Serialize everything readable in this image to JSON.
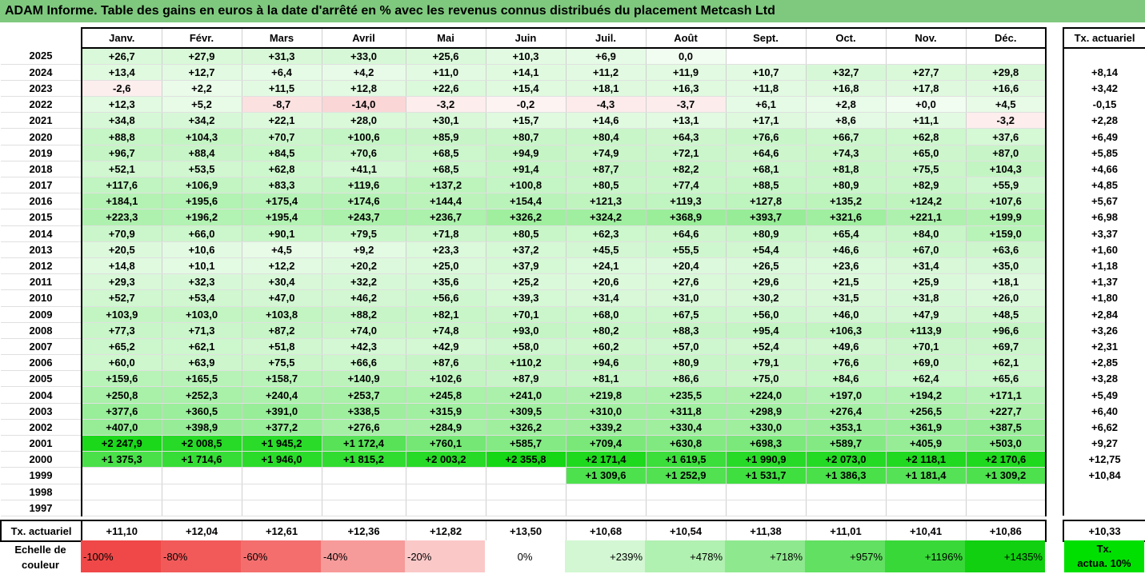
{
  "title": "ADAM Informe. Table des gains en euros à la date d'arrêté en % avec les revenus connus distribués du placement Metcash Ltd",
  "months": [
    "Janv.",
    "Févr.",
    "Mars",
    "Avril",
    "Mai",
    "Juin",
    "Juil.",
    "Août",
    "Sept.",
    "Oct.",
    "Nov.",
    "Déc."
  ],
  "tx_header": "Tx. actuariel",
  "rows": [
    {
      "year": "2025",
      "values": [
        "+26,7",
        "+27,9",
        "+31,3",
        "+33,0",
        "+25,6",
        "+10,3",
        "+6,9",
        "0,0",
        "",
        "",
        "",
        ""
      ],
      "tx": ""
    },
    {
      "year": "2024",
      "values": [
        "+13,4",
        "+12,7",
        "+6,4",
        "+4,2",
        "+11,0",
        "+14,1",
        "+11,2",
        "+11,9",
        "+10,7",
        "+32,7",
        "+27,7",
        "+29,8"
      ],
      "tx": "+8,14"
    },
    {
      "year": "2023",
      "values": [
        "-2,6",
        "+2,2",
        "+11,5",
        "+12,8",
        "+22,6",
        "+15,4",
        "+18,1",
        "+16,3",
        "+11,8",
        "+16,8",
        "+17,8",
        "+16,6"
      ],
      "tx": "+3,42"
    },
    {
      "year": "2022",
      "values": [
        "+12,3",
        "+5,2",
        "-8,7",
        "-14,0",
        "-3,2",
        "-0,2",
        "-4,3",
        "-3,7",
        "+6,1",
        "+2,8",
        "+0,0",
        "+4,5"
      ],
      "tx": "-0,15"
    },
    {
      "year": "2021",
      "values": [
        "+34,8",
        "+34,2",
        "+22,1",
        "+28,0",
        "+30,1",
        "+15,7",
        "+14,6",
        "+13,1",
        "+17,1",
        "+8,6",
        "+11,1",
        "-3,2"
      ],
      "tx": "+2,28"
    },
    {
      "year": "2020",
      "values": [
        "+88,8",
        "+104,3",
        "+70,7",
        "+100,6",
        "+85,9",
        "+80,7",
        "+80,4",
        "+64,3",
        "+76,6",
        "+66,7",
        "+62,8",
        "+37,6"
      ],
      "tx": "+6,49"
    },
    {
      "year": "2019",
      "values": [
        "+96,7",
        "+88,4",
        "+84,5",
        "+70,6",
        "+68,5",
        "+94,9",
        "+74,9",
        "+72,1",
        "+64,6",
        "+74,3",
        "+65,0",
        "+87,0"
      ],
      "tx": "+5,85"
    },
    {
      "year": "2018",
      "values": [
        "+52,1",
        "+53,5",
        "+62,8",
        "+41,1",
        "+68,5",
        "+91,4",
        "+87,7",
        "+82,2",
        "+68,1",
        "+81,8",
        "+75,5",
        "+104,3"
      ],
      "tx": "+4,66"
    },
    {
      "year": "2017",
      "values": [
        "+117,6",
        "+106,9",
        "+83,3",
        "+119,6",
        "+137,2",
        "+100,8",
        "+80,5",
        "+77,4",
        "+88,5",
        "+80,9",
        "+82,9",
        "+55,9"
      ],
      "tx": "+4,85"
    },
    {
      "year": "2016",
      "values": [
        "+184,1",
        "+195,6",
        "+175,4",
        "+174,6",
        "+144,4",
        "+154,4",
        "+121,3",
        "+119,3",
        "+127,8",
        "+135,2",
        "+124,2",
        "+107,6"
      ],
      "tx": "+5,67"
    },
    {
      "year": "2015",
      "values": [
        "+223,3",
        "+196,2",
        "+195,4",
        "+243,7",
        "+236,7",
        "+326,2",
        "+324,2",
        "+368,9",
        "+393,7",
        "+321,6",
        "+221,1",
        "+199,9"
      ],
      "tx": "+6,98"
    },
    {
      "year": "2014",
      "values": [
        "+70,9",
        "+66,0",
        "+90,1",
        "+79,5",
        "+71,8",
        "+80,5",
        "+62,3",
        "+64,6",
        "+80,9",
        "+65,4",
        "+84,0",
        "+159,0"
      ],
      "tx": "+3,37"
    },
    {
      "year": "2013",
      "values": [
        "+20,5",
        "+10,6",
        "+4,5",
        "+9,2",
        "+23,3",
        "+37,2",
        "+45,5",
        "+55,5",
        "+54,4",
        "+46,6",
        "+67,0",
        "+63,6"
      ],
      "tx": "+1,60"
    },
    {
      "year": "2012",
      "values": [
        "+14,8",
        "+10,1",
        "+12,2",
        "+20,2",
        "+25,0",
        "+37,9",
        "+24,1",
        "+20,4",
        "+26,5",
        "+23,6",
        "+31,4",
        "+35,0"
      ],
      "tx": "+1,18"
    },
    {
      "year": "2011",
      "values": [
        "+29,3",
        "+32,3",
        "+30,4",
        "+32,2",
        "+35,6",
        "+25,2",
        "+20,6",
        "+27,6",
        "+29,6",
        "+21,5",
        "+25,9",
        "+18,1"
      ],
      "tx": "+1,37"
    },
    {
      "year": "2010",
      "values": [
        "+52,7",
        "+53,4",
        "+47,0",
        "+46,2",
        "+56,6",
        "+39,3",
        "+31,4",
        "+31,0",
        "+30,2",
        "+31,5",
        "+31,8",
        "+26,0"
      ],
      "tx": "+1,80"
    },
    {
      "year": "2009",
      "values": [
        "+103,9",
        "+103,0",
        "+103,8",
        "+88,2",
        "+82,1",
        "+70,1",
        "+68,0",
        "+67,5",
        "+56,0",
        "+46,0",
        "+47,9",
        "+48,5"
      ],
      "tx": "+2,84"
    },
    {
      "year": "2008",
      "values": [
        "+77,3",
        "+71,3",
        "+87,2",
        "+74,0",
        "+74,8",
        "+93,0",
        "+80,2",
        "+88,3",
        "+95,4",
        "+106,3",
        "+113,9",
        "+96,6"
      ],
      "tx": "+3,26"
    },
    {
      "year": "2007",
      "values": [
        "+65,2",
        "+62,1",
        "+51,8",
        "+42,3",
        "+42,9",
        "+58,0",
        "+60,2",
        "+57,0",
        "+52,4",
        "+49,6",
        "+70,1",
        "+69,7"
      ],
      "tx": "+2,31"
    },
    {
      "year": "2006",
      "values": [
        "+60,0",
        "+63,9",
        "+75,5",
        "+66,6",
        "+87,6",
        "+110,2",
        "+94,6",
        "+80,9",
        "+79,1",
        "+76,6",
        "+69,0",
        "+62,1"
      ],
      "tx": "+2,85"
    },
    {
      "year": "2005",
      "values": [
        "+159,6",
        "+165,5",
        "+158,7",
        "+140,9",
        "+102,6",
        "+87,9",
        "+81,1",
        "+86,6",
        "+75,0",
        "+84,6",
        "+62,4",
        "+65,6"
      ],
      "tx": "+3,28"
    },
    {
      "year": "2004",
      "values": [
        "+250,8",
        "+252,3",
        "+240,4",
        "+253,7",
        "+245,8",
        "+241,0",
        "+219,8",
        "+235,5",
        "+224,0",
        "+197,0",
        "+194,2",
        "+171,1"
      ],
      "tx": "+5,49"
    },
    {
      "year": "2003",
      "values": [
        "+377,6",
        "+360,5",
        "+391,0",
        "+338,5",
        "+315,9",
        "+309,5",
        "+310,0",
        "+311,8",
        "+298,9",
        "+276,4",
        "+256,5",
        "+227,7"
      ],
      "tx": "+6,40"
    },
    {
      "year": "2002",
      "values": [
        "+407,0",
        "+398,9",
        "+377,2",
        "+276,6",
        "+284,9",
        "+326,2",
        "+339,2",
        "+330,4",
        "+330,0",
        "+353,1",
        "+361,9",
        "+387,5"
      ],
      "tx": "+6,62"
    },
    {
      "year": "2001",
      "values": [
        "+2 247,9",
        "+2 008,5",
        "+1 945,2",
        "+1 172,4",
        "+760,1",
        "+585,7",
        "+709,4",
        "+630,8",
        "+698,3",
        "+589,7",
        "+405,9",
        "+503,0"
      ],
      "tx": "+9,27"
    },
    {
      "year": "2000",
      "values": [
        "+1 375,3",
        "+1 714,6",
        "+1 946,0",
        "+1 815,2",
        "+2 003,2",
        "+2 355,8",
        "+2 171,4",
        "+1 619,5",
        "+1 990,9",
        "+2 073,0",
        "+2 118,1",
        "+2 170,6"
      ],
      "tx": "+12,75"
    },
    {
      "year": "1999",
      "values": [
        "",
        "",
        "",
        "",
        "",
        "",
        "+1 309,6",
        "+1 252,9",
        "+1 531,7",
        "+1 386,3",
        "+1 181,4",
        "+1 309,2"
      ],
      "tx": "+10,84"
    },
    {
      "year": "1998",
      "values": [
        "",
        "",
        "",
        "",
        "",
        "",
        "",
        "",
        "",
        "",
        "",
        ""
      ],
      "tx": ""
    },
    {
      "year": "1997",
      "values": [
        "",
        "",
        "",
        "",
        "",
        "",
        "",
        "",
        "",
        "",
        "",
        ""
      ],
      "tx": ""
    }
  ],
  "footer": {
    "label": "Tx. actuariel",
    "values": [
      "+11,10",
      "+12,04",
      "+12,61",
      "+12,36",
      "+12,82",
      "+13,50",
      "+10,68",
      "+10,54",
      "+11,38",
      "+11,01",
      "+10,41",
      "+10,86"
    ],
    "tx": "+10,33"
  },
  "scale": {
    "label_line1": "Echelle de",
    "label_line2": "couleur",
    "items": [
      {
        "text": "-100%",
        "color": "#f04848",
        "align": "left"
      },
      {
        "text": "-80%",
        "color": "#f25a5a",
        "align": "left"
      },
      {
        "text": "-60%",
        "color": "#f46e6e",
        "align": "left"
      },
      {
        "text": "-40%",
        "color": "#f79a9a",
        "align": "left"
      },
      {
        "text": "-20%",
        "color": "#fbc8c8",
        "align": "left"
      },
      {
        "text": "0%",
        "color": "#ffffff",
        "align": "center"
      },
      {
        "text": "+239%",
        "color": "#d2f7d2",
        "align": "right"
      },
      {
        "text": "+478%",
        "color": "#b0f0b0",
        "align": "right"
      },
      {
        "text": "+718%",
        "color": "#8ee88e",
        "align": "right"
      },
      {
        "text": "+957%",
        "color": "#62e062",
        "align": "right"
      },
      {
        "text": "+1196%",
        "color": "#38d838",
        "align": "right"
      },
      {
        "text": "+1435%",
        "color": "#10d010",
        "align": "right"
      }
    ],
    "tx_line1": "Tx.",
    "tx_line2": "actua. 10%"
  },
  "colors": {
    "title_bg": "#7ec97e",
    "negative_base": "#f04848",
    "positive_base": "#10d010"
  }
}
